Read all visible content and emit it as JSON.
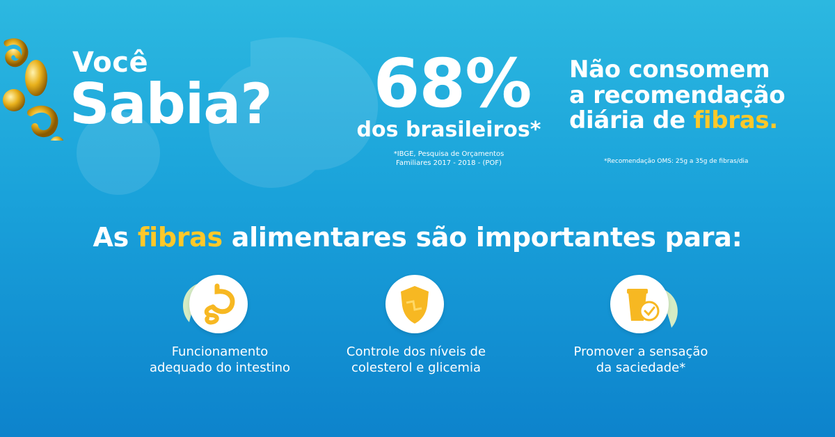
{
  "intro": {
    "line1": "Você",
    "line2": "Sabia?"
  },
  "stat": {
    "value": "68%",
    "subject": "dos brasileiros*",
    "source_line1": "*IBGE, Pesquisa de Orçamentos",
    "source_line2": "Familiares 2017 - 2018  - (POF)"
  },
  "claim": {
    "line1": "Não consomem",
    "line2": "a recomendação",
    "line3_prefix": "diária de ",
    "line3_highlight": "fibras.",
    "footnote": "*Recomendação OMS: 25g a 35g de fibras/dia"
  },
  "heading": {
    "prefix": "As ",
    "highlight": "fibras",
    "suffix": " alimentares são importantes para:"
  },
  "benefits": [
    {
      "icon": "stomach-icon",
      "line1": "Funcionamento",
      "line2": "adequado do intestino"
    },
    {
      "icon": "shield-icon",
      "line1": "Controle dos níveis de",
      "line2": "colesterol e glicemia"
    },
    {
      "icon": "satiety-cup-icon",
      "line1": "Promover  a sensação",
      "line2": "da saciedade*"
    }
  ],
  "colors": {
    "background_top": "#2cb8e0",
    "background_bottom": "#0d83cc",
    "text": "#ffffff",
    "highlight": "#ffc829"
  }
}
